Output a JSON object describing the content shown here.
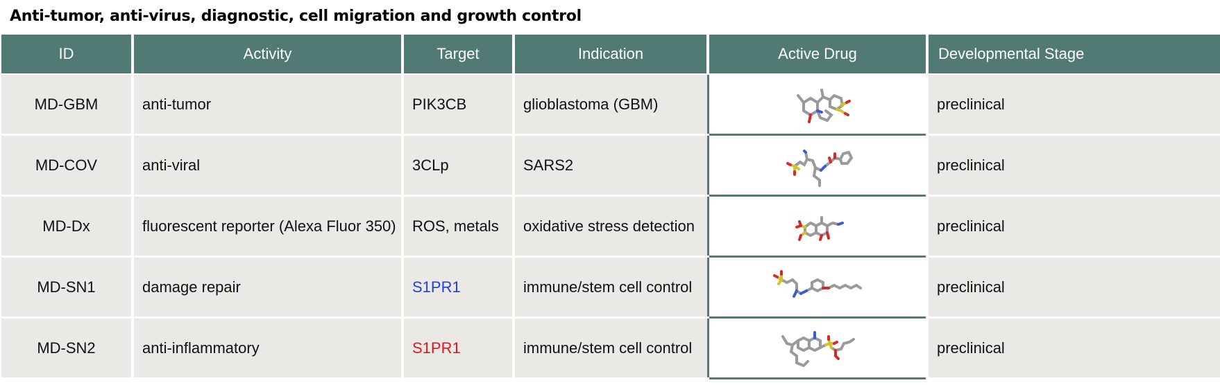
{
  "caption": "Anti-tumor, anti-virus, diagnostic, cell migration and growth control",
  "columns": [
    "ID",
    "Activity",
    "Target",
    "Indication",
    "Active Drug",
    "Developmental Stage"
  ],
  "colors": {
    "header_bg": "#527a74",
    "row_bg": "#ebe9e6",
    "target_blue": "#1f3fe0",
    "target_red": "#e0161e"
  },
  "rows": [
    {
      "id": "MD-GBM",
      "activity": "anti-tumor",
      "target": "PIK3CB",
      "target_color": "",
      "indication": "glioblastoma (GBM)",
      "drug_icon": "molecule-structure-icon",
      "stage": "preclinical"
    },
    {
      "id": "MD-COV",
      "activity": "anti-viral",
      "target": "3CLp",
      "target_color": "",
      "indication": "SARS2",
      "drug_icon": "molecule-structure-icon",
      "stage": "preclinical"
    },
    {
      "id": "MD-Dx",
      "activity": "fluorescent reporter (Alexa Fluor 350)",
      "target": "ROS, metals",
      "target_color": "",
      "indication": "oxidative stress detection",
      "drug_icon": "molecule-structure-icon",
      "stage": "preclinical"
    },
    {
      "id": "MD-SN1",
      "activity": "damage repair",
      "target": "S1PR1",
      "target_color": "#1f3fe0",
      "indication": "immune/stem cell control",
      "drug_icon": "molecule-structure-icon",
      "stage": "preclinical"
    },
    {
      "id": "MD-SN2",
      "activity": "anti-inflammatory",
      "target": "S1PR1",
      "target_color": "#e0161e",
      "indication": "immune/stem cell control",
      "drug_icon": "molecule-structure-icon",
      "stage": "preclinical"
    }
  ]
}
